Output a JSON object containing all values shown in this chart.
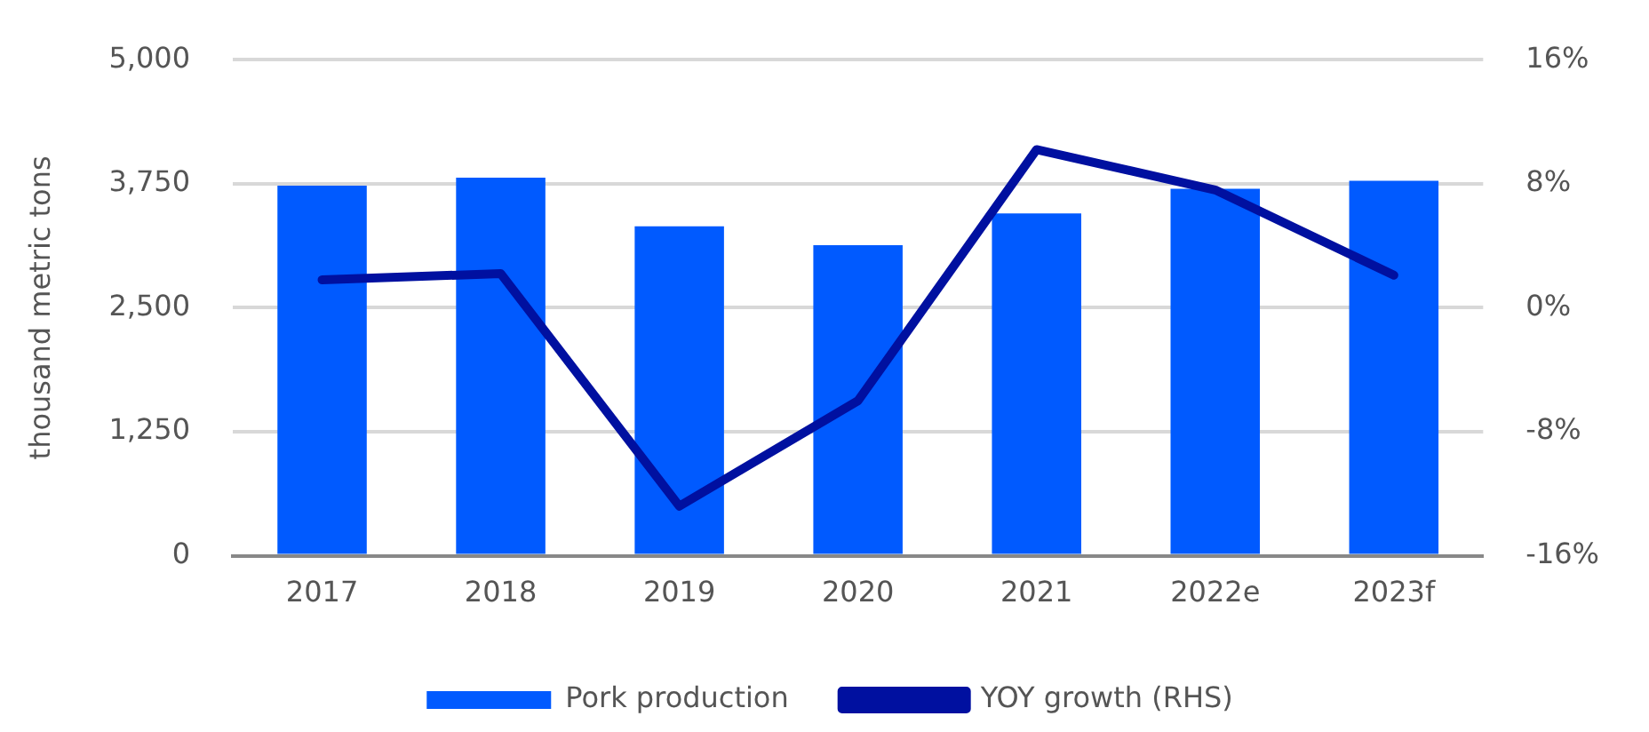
{
  "chart_data": {
    "type": "bar",
    "ylabel": "thousand metric tons",
    "categories": [
      "2017",
      "2018",
      "2019",
      "2020",
      "2021",
      "2022e",
      "2023f"
    ],
    "series": [
      {
        "name": "Pork production",
        "color": "#005aff",
        "values": [
          3730,
          3810,
          3320,
          3130,
          3450,
          3700,
          3780
        ]
      },
      {
        "name": "YOY growth (RHS)",
        "type": "line",
        "axis": "y2",
        "color": "#0010a0",
        "values": [
          1.8,
          2.2,
          -12.8,
          -6.0,
          10.2,
          7.6,
          2.1
        ]
      }
    ],
    "ylim": [
      0,
      5000
    ],
    "yticks": [
      {
        "value": 0,
        "label": "0"
      },
      {
        "value": 1250,
        "label": "1,250"
      },
      {
        "value": 2500,
        "label": "2,500"
      },
      {
        "value": 3750,
        "label": "3,750"
      },
      {
        "value": 5000,
        "label": "5,000"
      }
    ],
    "y2lim": [
      -16,
      16
    ],
    "y2ticks": [
      {
        "value": -16,
        "label": "-16%"
      },
      {
        "value": -8,
        "label": "-8%"
      },
      {
        "value": 0,
        "label": "0%"
      },
      {
        "value": 8,
        "label": "8%"
      },
      {
        "value": 16,
        "label": "16%"
      }
    ],
    "grid": "y",
    "legend": "bottom",
    "marker": "none"
  }
}
